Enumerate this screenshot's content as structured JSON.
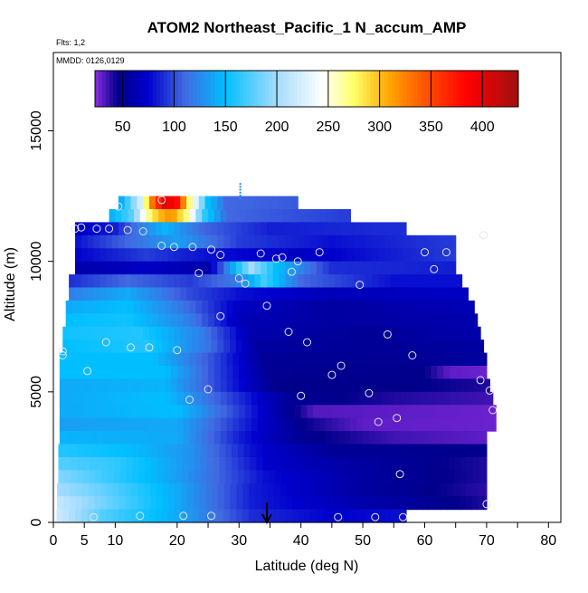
{
  "page": {
    "title": "ATOM2 Northeast_Pacific_1 N_accum_AMP",
    "flights_note": "Flts: 1,2",
    "date_note": "MMDD: 0126,0129"
  },
  "chart_data": {
    "type": "heatmap",
    "title": "ATOM2 Northeast_Pacific_1 N_accum_AMP",
    "xlabel": "Latitude (deg N)",
    "ylabel": "Altitude (m)",
    "xlim": [
      0,
      82
    ],
    "ylim": [
      0,
      18000
    ],
    "x_ticks": [
      0,
      5,
      10,
      20,
      30,
      40,
      50,
      60,
      70,
      80
    ],
    "y_ticks": [
      0,
      5000,
      10000,
      15000
    ],
    "colorbar": {
      "range": [
        23,
        435
      ],
      "ticks": [
        50,
        100,
        150,
        200,
        250,
        300,
        350,
        400
      ],
      "stops": [
        {
          "v": 23,
          "c": "#8a2be2"
        },
        {
          "v": 45,
          "c": "#00008b"
        },
        {
          "v": 75,
          "c": "#0000cd"
        },
        {
          "v": 110,
          "c": "#4169e1"
        },
        {
          "v": 150,
          "c": "#00bfff"
        },
        {
          "v": 200,
          "c": "#a6dcff"
        },
        {
          "v": 245,
          "c": "#ffffff"
        },
        {
          "v": 275,
          "c": "#ffff66"
        },
        {
          "v": 310,
          "c": "#ffa500"
        },
        {
          "v": 350,
          "c": "#ff4500"
        },
        {
          "v": 385,
          "c": "#ff0000"
        },
        {
          "v": 435,
          "c": "#a01010"
        }
      ]
    },
    "grid": false,
    "arrow_marker_latitude": 34.5,
    "rows": [
      {
        "alt": 12250,
        "x0": 10.5,
        "x1": 39.5,
        "values": [
          {
            "x": 10.5,
            "v": 130
          },
          {
            "x": 14,
            "v": 220
          },
          {
            "x": 16,
            "v": 330
          },
          {
            "x": 18,
            "v": 400
          },
          {
            "x": 20,
            "v": 380
          },
          {
            "x": 22,
            "v": 270
          },
          {
            "x": 25,
            "v": 150
          },
          {
            "x": 28,
            "v": 110
          },
          {
            "x": 39.5,
            "v": 105
          }
        ]
      },
      {
        "alt": 11750,
        "x0": 9.0,
        "x1": 48.0,
        "values": [
          {
            "x": 9,
            "v": 140
          },
          {
            "x": 13,
            "v": 180
          },
          {
            "x": 15,
            "v": 260
          },
          {
            "x": 17,
            "v": 300
          },
          {
            "x": 19,
            "v": 320
          },
          {
            "x": 22,
            "v": 260
          },
          {
            "x": 24,
            "v": 170
          },
          {
            "x": 28,
            "v": 110
          },
          {
            "x": 48,
            "v": 95
          }
        ]
      },
      {
        "alt": 11250,
        "x0": 3.5,
        "x1": 57.0,
        "values": [
          {
            "x": 3.5,
            "v": 70
          },
          {
            "x": 10,
            "v": 85
          },
          {
            "x": 14,
            "v": 120
          },
          {
            "x": 18,
            "v": 145
          },
          {
            "x": 24,
            "v": 110
          },
          {
            "x": 35,
            "v": 85
          },
          {
            "x": 57,
            "v": 90
          }
        ]
      },
      {
        "alt": 10750,
        "x0": 3.5,
        "x1": 65.0,
        "values": [
          {
            "x": 3.5,
            "v": 80
          },
          {
            "x": 12,
            "v": 110
          },
          {
            "x": 20,
            "v": 135
          },
          {
            "x": 30,
            "v": 95
          },
          {
            "x": 45,
            "v": 80
          },
          {
            "x": 65,
            "v": 95
          }
        ]
      },
      {
        "alt": 10250,
        "x0": 3.5,
        "x1": 65.0,
        "values": [
          {
            "x": 3.5,
            "v": 75
          },
          {
            "x": 15,
            "v": 95
          },
          {
            "x": 25,
            "v": 80
          },
          {
            "x": 40,
            "v": 70
          },
          {
            "x": 55,
            "v": 85
          },
          {
            "x": 65,
            "v": 95
          }
        ]
      },
      {
        "alt": 9750,
        "x0": 3.5,
        "x1": 65.0,
        "values": [
          {
            "x": 3.5,
            "v": 60
          },
          {
            "x": 15,
            "v": 70
          },
          {
            "x": 25,
            "v": 60
          },
          {
            "x": 29,
            "v": 140
          },
          {
            "x": 32,
            "v": 200
          },
          {
            "x": 36,
            "v": 150
          },
          {
            "x": 45,
            "v": 90
          },
          {
            "x": 65,
            "v": 85
          }
        ]
      },
      {
        "alt": 9250,
        "x0": 2.5,
        "x1": 66.0,
        "values": [
          {
            "x": 2.5,
            "v": 90
          },
          {
            "x": 12,
            "v": 110
          },
          {
            "x": 22,
            "v": 95
          },
          {
            "x": 30,
            "v": 120
          },
          {
            "x": 34,
            "v": 170
          },
          {
            "x": 40,
            "v": 110
          },
          {
            "x": 55,
            "v": 80
          },
          {
            "x": 66,
            "v": 80
          }
        ]
      },
      {
        "alt": 8750,
        "x0": 2.5,
        "x1": 67.0,
        "values": [
          {
            "x": 2.5,
            "v": 120
          },
          {
            "x": 12,
            "v": 140
          },
          {
            "x": 22,
            "v": 100
          },
          {
            "x": 30,
            "v": 80
          },
          {
            "x": 45,
            "v": 65
          },
          {
            "x": 67,
            "v": 70
          }
        ]
      },
      {
        "alt": 8250,
        "x0": 2.0,
        "x1": 68.0,
        "values": [
          {
            "x": 2,
            "v": 140
          },
          {
            "x": 12,
            "v": 150
          },
          {
            "x": 20,
            "v": 120
          },
          {
            "x": 30,
            "v": 70
          },
          {
            "x": 45,
            "v": 55
          },
          {
            "x": 68,
            "v": 65
          }
        ]
      },
      {
        "alt": 7750,
        "x0": 2.0,
        "x1": 68.5,
        "values": [
          {
            "x": 2,
            "v": 150
          },
          {
            "x": 12,
            "v": 155
          },
          {
            "x": 22,
            "v": 120
          },
          {
            "x": 30,
            "v": 65
          },
          {
            "x": 45,
            "v": 55
          },
          {
            "x": 68.5,
            "v": 60
          }
        ]
      },
      {
        "alt": 7250,
        "x0": 1.5,
        "x1": 69.0,
        "values": [
          {
            "x": 1.5,
            "v": 155
          },
          {
            "x": 14,
            "v": 160
          },
          {
            "x": 24,
            "v": 120
          },
          {
            "x": 32,
            "v": 60
          },
          {
            "x": 50,
            "v": 50
          },
          {
            "x": 69,
            "v": 60
          }
        ]
      },
      {
        "alt": 6750,
        "x0": 1.5,
        "x1": 69.5,
        "values": [
          {
            "x": 1.5,
            "v": 150
          },
          {
            "x": 15,
            "v": 160
          },
          {
            "x": 25,
            "v": 115
          },
          {
            "x": 33,
            "v": 55
          },
          {
            "x": 50,
            "v": 50
          },
          {
            "x": 69.5,
            "v": 55
          }
        ]
      },
      {
        "alt": 6250,
        "x0": 1.0,
        "x1": 70.0,
        "values": [
          {
            "x": 1,
            "v": 150
          },
          {
            "x": 16,
            "v": 150
          },
          {
            "x": 26,
            "v": 100
          },
          {
            "x": 34,
            "v": 50
          },
          {
            "x": 55,
            "v": 48
          },
          {
            "x": 70,
            "v": 55
          }
        ]
      },
      {
        "alt": 5750,
        "x0": 1.0,
        "x1": 70.0,
        "values": [
          {
            "x": 1,
            "v": 150
          },
          {
            "x": 18,
            "v": 150
          },
          {
            "x": 26,
            "v": 100
          },
          {
            "x": 35,
            "v": 48
          },
          {
            "x": 60,
            "v": 45
          },
          {
            "x": 64,
            "v": 30
          },
          {
            "x": 70,
            "v": 28
          }
        ]
      },
      {
        "alt": 5250,
        "x0": 1.0,
        "x1": 70.5,
        "values": [
          {
            "x": 1,
            "v": 140
          },
          {
            "x": 18,
            "v": 145
          },
          {
            "x": 27,
            "v": 95
          },
          {
            "x": 36,
            "v": 45
          },
          {
            "x": 60,
            "v": 45
          },
          {
            "x": 70.5,
            "v": 40
          }
        ]
      },
      {
        "alt": 4750,
        "x0": 1.0,
        "x1": 71.0,
        "values": [
          {
            "x": 1,
            "v": 140
          },
          {
            "x": 18,
            "v": 150
          },
          {
            "x": 28,
            "v": 100
          },
          {
            "x": 38,
            "v": 50
          },
          {
            "x": 55,
            "v": 40
          },
          {
            "x": 71,
            "v": 35
          }
        ]
      },
      {
        "alt": 4250,
        "x0": 1.0,
        "x1": 71.5,
        "values": [
          {
            "x": 1,
            "v": 140
          },
          {
            "x": 20,
            "v": 150
          },
          {
            "x": 30,
            "v": 95
          },
          {
            "x": 38,
            "v": 50
          },
          {
            "x": 42,
            "v": 32
          },
          {
            "x": 71.5,
            "v": 28
          }
        ]
      },
      {
        "alt": 3750,
        "x0": 1.0,
        "x1": 71.5,
        "values": [
          {
            "x": 1,
            "v": 135
          },
          {
            "x": 20,
            "v": 140
          },
          {
            "x": 30,
            "v": 90
          },
          {
            "x": 40,
            "v": 45
          },
          {
            "x": 50,
            "v": 30
          },
          {
            "x": 71.5,
            "v": 28
          }
        ]
      },
      {
        "alt": 3250,
        "x0": 1.0,
        "x1": 70.0,
        "values": [
          {
            "x": 1,
            "v": 145
          },
          {
            "x": 20,
            "v": 140
          },
          {
            "x": 30,
            "v": 85
          },
          {
            "x": 40,
            "v": 48
          },
          {
            "x": 55,
            "v": 35
          },
          {
            "x": 70,
            "v": 30
          }
        ]
      },
      {
        "alt": 2750,
        "x0": 0.8,
        "x1": 70.0,
        "values": [
          {
            "x": 0.8,
            "v": 160
          },
          {
            "x": 12,
            "v": 150
          },
          {
            "x": 22,
            "v": 130
          },
          {
            "x": 32,
            "v": 80
          },
          {
            "x": 45,
            "v": 50
          },
          {
            "x": 70,
            "v": 45
          }
        ]
      },
      {
        "alt": 2250,
        "x0": 0.8,
        "x1": 70.0,
        "values": [
          {
            "x": 0.8,
            "v": 175
          },
          {
            "x": 10,
            "v": 165
          },
          {
            "x": 22,
            "v": 130
          },
          {
            "x": 34,
            "v": 75
          },
          {
            "x": 48,
            "v": 55
          },
          {
            "x": 70,
            "v": 40
          }
        ]
      },
      {
        "alt": 1750,
        "x0": 0.8,
        "x1": 70.0,
        "values": [
          {
            "x": 0.8,
            "v": 190
          },
          {
            "x": 8,
            "v": 170
          },
          {
            "x": 20,
            "v": 135
          },
          {
            "x": 34,
            "v": 80
          },
          {
            "x": 50,
            "v": 55
          },
          {
            "x": 70,
            "v": 40
          }
        ]
      },
      {
        "alt": 1250,
        "x0": 0.6,
        "x1": 70.0,
        "values": [
          {
            "x": 0.6,
            "v": 200
          },
          {
            "x": 8,
            "v": 180
          },
          {
            "x": 20,
            "v": 140
          },
          {
            "x": 32,
            "v": 85
          },
          {
            "x": 50,
            "v": 55
          },
          {
            "x": 70,
            "v": 38
          }
        ]
      },
      {
        "alt": 750,
        "x0": 0.6,
        "x1": 70.0,
        "values": [
          {
            "x": 0.6,
            "v": 215
          },
          {
            "x": 8,
            "v": 185
          },
          {
            "x": 20,
            "v": 140
          },
          {
            "x": 32,
            "v": 85
          },
          {
            "x": 50,
            "v": 60
          },
          {
            "x": 70,
            "v": 40
          }
        ]
      },
      {
        "alt": 250,
        "x0": 0.5,
        "x1": 57.0,
        "values": [
          {
            "x": 0.5,
            "v": 220
          },
          {
            "x": 8,
            "v": 175
          },
          {
            "x": 20,
            "v": 140
          },
          {
            "x": 32,
            "v": 90
          },
          {
            "x": 45,
            "v": 75
          },
          {
            "x": 57,
            "v": 80
          }
        ]
      }
    ],
    "points": [
      {
        "x": 10.5,
        "y": 12100
      },
      {
        "x": 17.5,
        "y": 12350
      },
      {
        "x": 3.5,
        "y": 11250
      },
      {
        "x": 4.5,
        "y": 11300
      },
      {
        "x": 7,
        "y": 11250
      },
      {
        "x": 9,
        "y": 11250
      },
      {
        "x": 12,
        "y": 11200
      },
      {
        "x": 14.5,
        "y": 11150
      },
      {
        "x": 17.5,
        "y": 10600
      },
      {
        "x": 19.5,
        "y": 10550
      },
      {
        "x": 22.5,
        "y": 10550
      },
      {
        "x": 25.5,
        "y": 10450
      },
      {
        "x": 27,
        "y": 10250
      },
      {
        "x": 33.5,
        "y": 10300
      },
      {
        "x": 36,
        "y": 10100
      },
      {
        "x": 37,
        "y": 10150
      },
      {
        "x": 39.5,
        "y": 10000
      },
      {
        "x": 43,
        "y": 10350
      },
      {
        "x": 60,
        "y": 10350
      },
      {
        "x": 61.5,
        "y": 9700
      },
      {
        "x": 63.5,
        "y": 10350
      },
      {
        "x": 69.5,
        "y": 11000
      },
      {
        "x": 23.5,
        "y": 9550
      },
      {
        "x": 30,
        "y": 9350
      },
      {
        "x": 31,
        "y": 9150
      },
      {
        "x": 38.5,
        "y": 9600
      },
      {
        "x": 49.5,
        "y": 9100
      },
      {
        "x": 34.5,
        "y": 8300
      },
      {
        "x": 27,
        "y": 7900
      },
      {
        "x": 38,
        "y": 7300
      },
      {
        "x": 41,
        "y": 6900
      },
      {
        "x": 54,
        "y": 7200
      },
      {
        "x": 8.5,
        "y": 6900
      },
      {
        "x": 12.5,
        "y": 6700
      },
      {
        "x": 15.5,
        "y": 6700
      },
      {
        "x": 20,
        "y": 6600
      },
      {
        "x": 1.5,
        "y": 6550
      },
      {
        "x": 1.5,
        "y": 6400
      },
      {
        "x": 58,
        "y": 6400
      },
      {
        "x": 46.5,
        "y": 6000
      },
      {
        "x": 45,
        "y": 5650
      },
      {
        "x": 5.5,
        "y": 5800
      },
      {
        "x": 25,
        "y": 5100
      },
      {
        "x": 22,
        "y": 4700
      },
      {
        "x": 40,
        "y": 4850
      },
      {
        "x": 51,
        "y": 4950
      },
      {
        "x": 69,
        "y": 5450
      },
      {
        "x": 70.5,
        "y": 5050
      },
      {
        "x": 71,
        "y": 4300
      },
      {
        "x": 55.5,
        "y": 4000
      },
      {
        "x": 52.5,
        "y": 3850
      },
      {
        "x": 56,
        "y": 1850
      },
      {
        "x": 70,
        "y": 700
      },
      {
        "x": 14,
        "y": 250
      },
      {
        "x": 21,
        "y": 250
      },
      {
        "x": 25.5,
        "y": 250
      },
      {
        "x": 6.5,
        "y": 200
      },
      {
        "x": 46,
        "y": 200
      },
      {
        "x": 52,
        "y": 200
      },
      {
        "x": 56.5,
        "y": 200
      }
    ]
  }
}
